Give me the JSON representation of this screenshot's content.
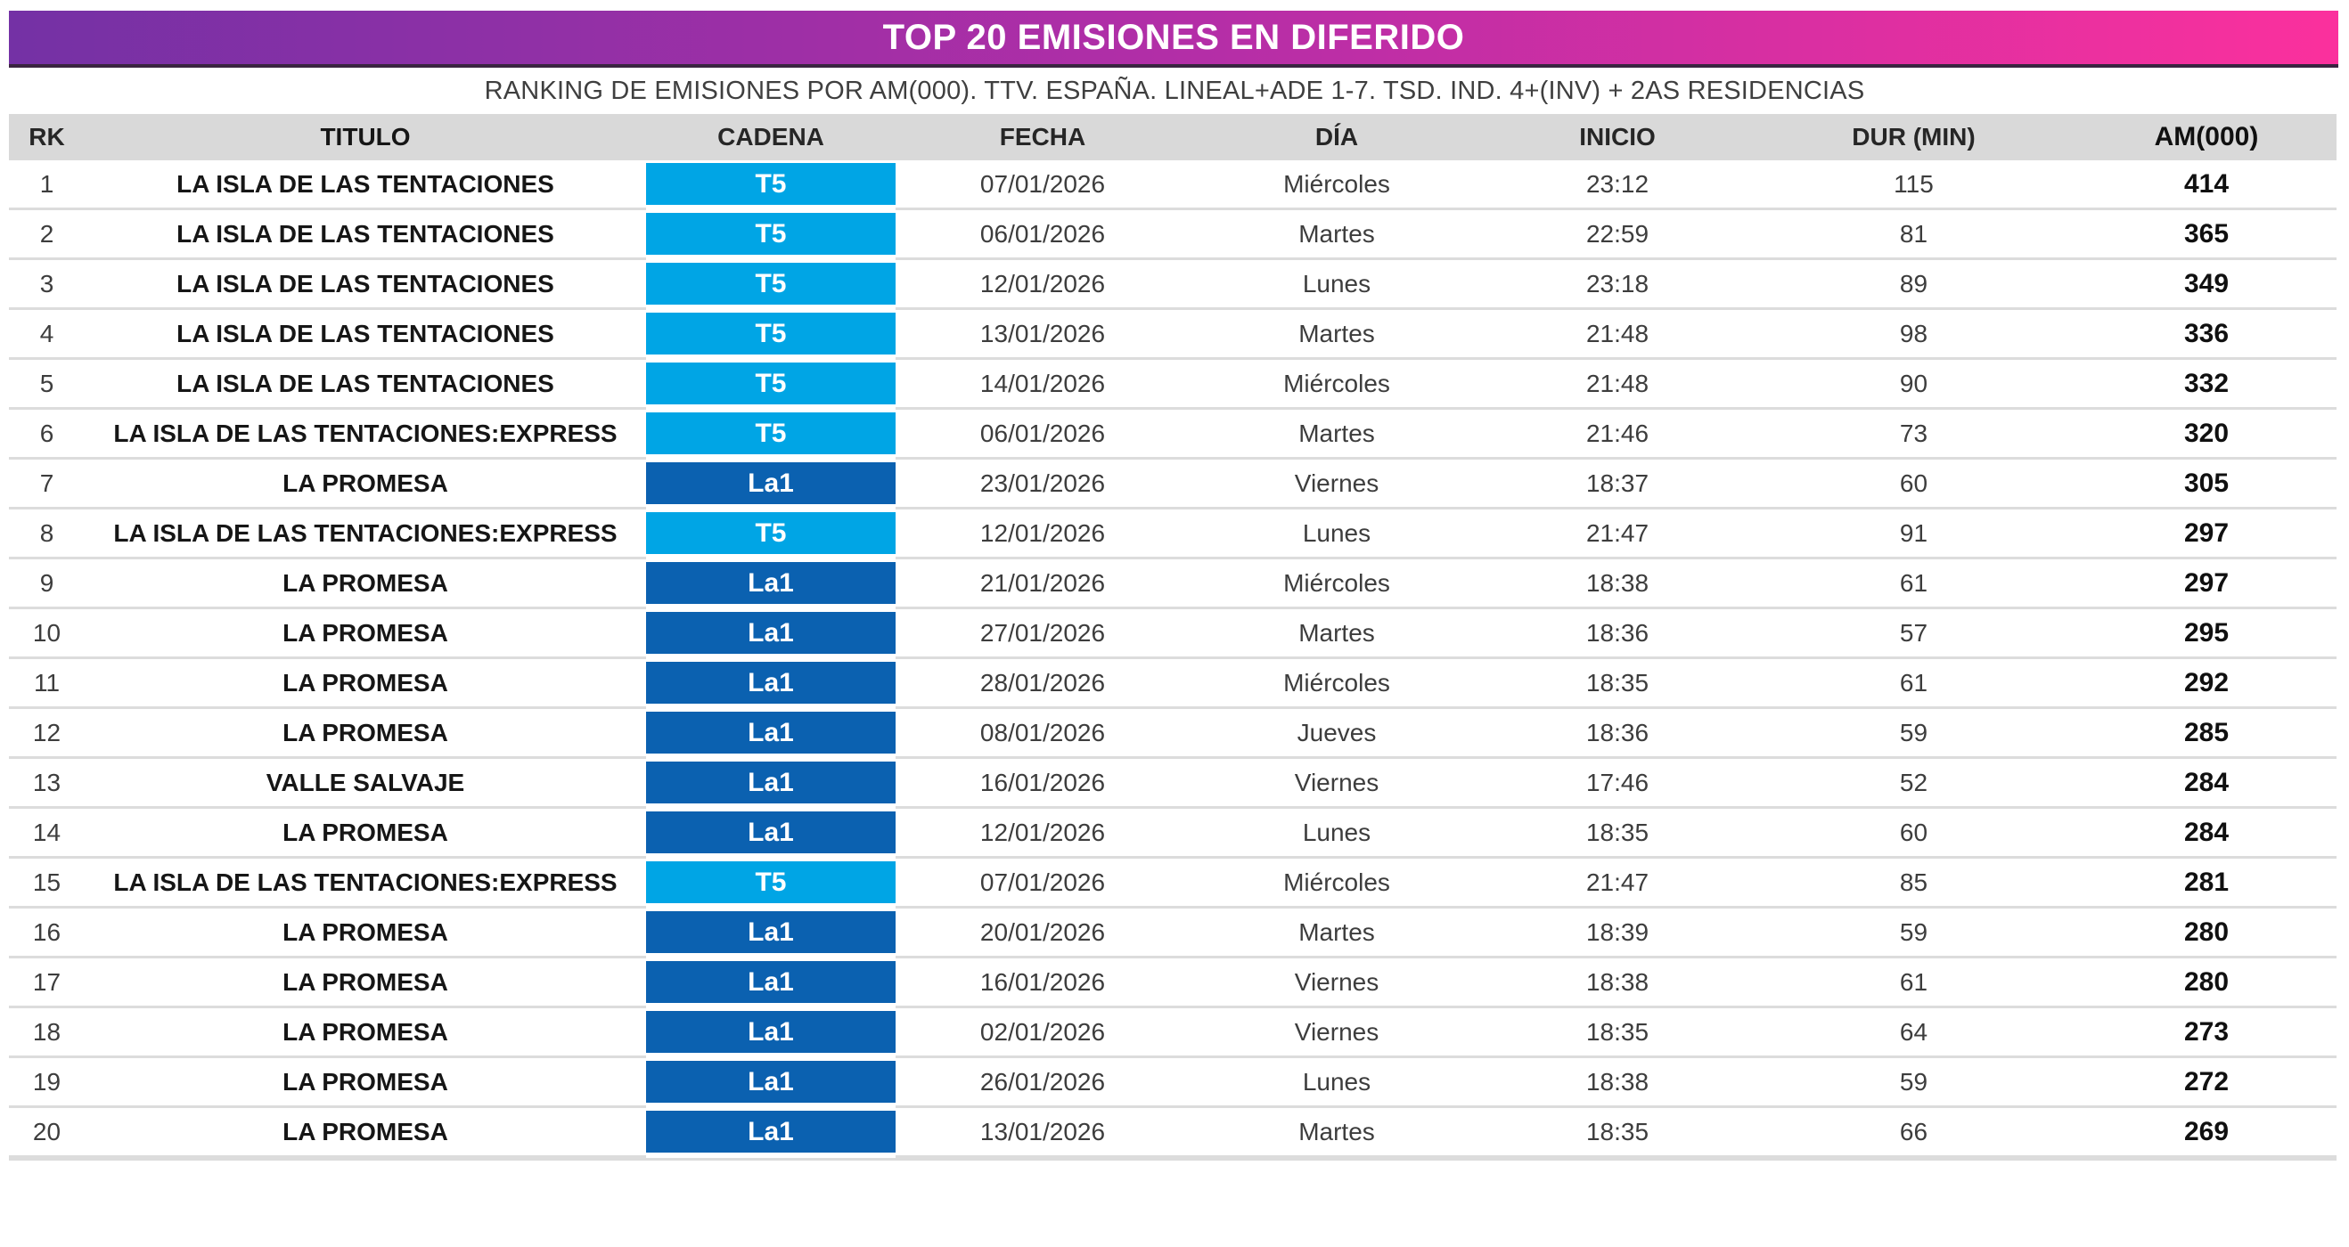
{
  "header": {
    "title": "TOP 20 EMISIONES EN DIFERIDO",
    "subtitle": "RANKING DE EMISIONES POR AM(000). TTV. ESPAÑA. LINEAL+ADE 1-7. TSD. IND. 4+(INV) + 2AS RESIDENCIAS",
    "gradient_left": "#7431A5",
    "gradient_mid": "#B52EA7",
    "gradient_right": "#FB309D"
  },
  "channels": {
    "T5": "#00A5E5",
    "La1": "#0B61B0"
  },
  "chart_data": {
    "type": "table",
    "title": "TOP 20 EMISIONES EN DIFERIDO",
    "subtitle": "RANKING DE EMISIONES POR AM(000). TTV. ESPAÑA. LINEAL+ADE 1-7. TSD. IND. 4+(INV) + 2AS RESIDENCIAS",
    "columns": [
      "RK",
      "TITULO",
      "CADENA",
      "FECHA",
      "DÍA",
      "INICIO",
      "DUR (MIN)",
      "AM(000)"
    ],
    "rows": [
      {
        "rk": "1",
        "titulo": "LA ISLA DE LAS TENTACIONES",
        "cadena": "T5",
        "fecha": "07/01/2026",
        "dia": "Miércoles",
        "inicio": "23:12",
        "dur": "115",
        "am": "414"
      },
      {
        "rk": "2",
        "titulo": "LA ISLA DE LAS TENTACIONES",
        "cadena": "T5",
        "fecha": "06/01/2026",
        "dia": "Martes",
        "inicio": "22:59",
        "dur": "81",
        "am": "365"
      },
      {
        "rk": "3",
        "titulo": "LA ISLA DE LAS TENTACIONES",
        "cadena": "T5",
        "fecha": "12/01/2026",
        "dia": "Lunes",
        "inicio": "23:18",
        "dur": "89",
        "am": "349"
      },
      {
        "rk": "4",
        "titulo": "LA ISLA DE LAS TENTACIONES",
        "cadena": "T5",
        "fecha": "13/01/2026",
        "dia": "Martes",
        "inicio": "21:48",
        "dur": "98",
        "am": "336"
      },
      {
        "rk": "5",
        "titulo": "LA ISLA DE LAS TENTACIONES",
        "cadena": "T5",
        "fecha": "14/01/2026",
        "dia": "Miércoles",
        "inicio": "21:48",
        "dur": "90",
        "am": "332"
      },
      {
        "rk": "6",
        "titulo": "LA ISLA DE LAS TENTACIONES:EXPRESS",
        "cadena": "T5",
        "fecha": "06/01/2026",
        "dia": "Martes",
        "inicio": "21:46",
        "dur": "73",
        "am": "320"
      },
      {
        "rk": "7",
        "titulo": "LA PROMESA",
        "cadena": "La1",
        "fecha": "23/01/2026",
        "dia": "Viernes",
        "inicio": "18:37",
        "dur": "60",
        "am": "305"
      },
      {
        "rk": "8",
        "titulo": "LA ISLA DE LAS TENTACIONES:EXPRESS",
        "cadena": "T5",
        "fecha": "12/01/2026",
        "dia": "Lunes",
        "inicio": "21:47",
        "dur": "91",
        "am": "297"
      },
      {
        "rk": "9",
        "titulo": "LA PROMESA",
        "cadena": "La1",
        "fecha": "21/01/2026",
        "dia": "Miércoles",
        "inicio": "18:38",
        "dur": "61",
        "am": "297"
      },
      {
        "rk": "10",
        "titulo": "LA PROMESA",
        "cadena": "La1",
        "fecha": "27/01/2026",
        "dia": "Martes",
        "inicio": "18:36",
        "dur": "57",
        "am": "295"
      },
      {
        "rk": "11",
        "titulo": "LA PROMESA",
        "cadena": "La1",
        "fecha": "28/01/2026",
        "dia": "Miércoles",
        "inicio": "18:35",
        "dur": "61",
        "am": "292"
      },
      {
        "rk": "12",
        "titulo": "LA PROMESA",
        "cadena": "La1",
        "fecha": "08/01/2026",
        "dia": "Jueves",
        "inicio": "18:36",
        "dur": "59",
        "am": "285"
      },
      {
        "rk": "13",
        "titulo": "VALLE SALVAJE",
        "cadena": "La1",
        "fecha": "16/01/2026",
        "dia": "Viernes",
        "inicio": "17:46",
        "dur": "52",
        "am": "284"
      },
      {
        "rk": "14",
        "titulo": "LA PROMESA",
        "cadena": "La1",
        "fecha": "12/01/2026",
        "dia": "Lunes",
        "inicio": "18:35",
        "dur": "60",
        "am": "284"
      },
      {
        "rk": "15",
        "titulo": "LA ISLA DE LAS TENTACIONES:EXPRESS",
        "cadena": "T5",
        "fecha": "07/01/2026",
        "dia": "Miércoles",
        "inicio": "21:47",
        "dur": "85",
        "am": "281"
      },
      {
        "rk": "16",
        "titulo": "LA PROMESA",
        "cadena": "La1",
        "fecha": "20/01/2026",
        "dia": "Martes",
        "inicio": "18:39",
        "dur": "59",
        "am": "280"
      },
      {
        "rk": "17",
        "titulo": "LA PROMESA",
        "cadena": "La1",
        "fecha": "16/01/2026",
        "dia": "Viernes",
        "inicio": "18:38",
        "dur": "61",
        "am": "280"
      },
      {
        "rk": "18",
        "titulo": "LA PROMESA",
        "cadena": "La1",
        "fecha": "02/01/2026",
        "dia": "Viernes",
        "inicio": "18:35",
        "dur": "64",
        "am": "273"
      },
      {
        "rk": "19",
        "titulo": "LA PROMESA",
        "cadena": "La1",
        "fecha": "26/01/2026",
        "dia": "Lunes",
        "inicio": "18:38",
        "dur": "59",
        "am": "272"
      },
      {
        "rk": "20",
        "titulo": "LA PROMESA",
        "cadena": "La1",
        "fecha": "13/01/2026",
        "dia": "Martes",
        "inicio": "18:35",
        "dur": "66",
        "am": "269"
      }
    ]
  }
}
